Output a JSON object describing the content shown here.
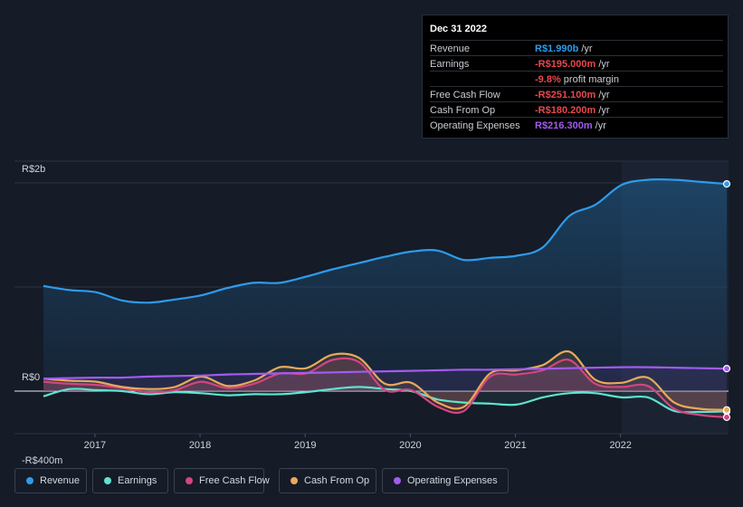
{
  "tooltip": {
    "date": "Dec 31 2022",
    "rows": [
      {
        "label": "Revenue",
        "value": "R$1.990b",
        "unit": " /yr",
        "color": "#2f9bea"
      },
      {
        "label": "Earnings",
        "value": "-R$195.000m",
        "unit": " /yr",
        "color": "#e8474f"
      },
      {
        "label": "",
        "value": "-9.8%",
        "unit": " profit margin",
        "color": "#e8474f"
      },
      {
        "label": "Free Cash Flow",
        "value": "-R$251.100m",
        "unit": " /yr",
        "color": "#e8474f"
      },
      {
        "label": "Cash From Op",
        "value": "-R$180.200m",
        "unit": " /yr",
        "color": "#e8474f"
      },
      {
        "label": "Operating Expenses",
        "value": "R$216.300m",
        "unit": " /yr",
        "color": "#a25bf0"
      }
    ]
  },
  "legend": [
    {
      "label": "Revenue",
      "color": "#2f9bea"
    },
    {
      "label": "Earnings",
      "color": "#5fe3cf"
    },
    {
      "label": "Free Cash Flow",
      "color": "#d3467e"
    },
    {
      "label": "Cash From Op",
      "color": "#e9a95a"
    },
    {
      "label": "Operating Expenses",
      "color": "#a25bf0"
    }
  ],
  "chart_data": {
    "type": "line",
    "title": "",
    "xlabel": "",
    "ylabel": "",
    "y_tick_labels": [
      "R$2b",
      "R$0",
      "-R$400m"
    ],
    "x_tick_labels": [
      "2017",
      "2018",
      "2019",
      "2020",
      "2021",
      "2022"
    ],
    "ylim": [
      -400,
      2200
    ],
    "xlim": [
      2016.5,
      2023.0
    ],
    "highlight_from": 2022.0,
    "units": "R$ millions",
    "x": [
      2016.5,
      2016.75,
      2017.0,
      2017.25,
      2017.5,
      2017.75,
      2018.0,
      2018.25,
      2018.5,
      2018.75,
      2019.0,
      2019.25,
      2019.5,
      2019.75,
      2020.0,
      2020.25,
      2020.5,
      2020.75,
      2021.0,
      2021.25,
      2021.5,
      2021.75,
      2022.0,
      2022.25,
      2022.5,
      2022.75,
      2023.0
    ],
    "series": [
      {
        "name": "Revenue",
        "color": "#2f9bea",
        "values": [
          1010,
          970,
          950,
          870,
          850,
          880,
          920,
          990,
          1040,
          1040,
          1100,
          1170,
          1230,
          1290,
          1340,
          1350,
          1260,
          1280,
          1300,
          1380,
          1680,
          1790,
          1980,
          2030,
          2030,
          2010,
          1990
        ]
      },
      {
        "name": "Earnings",
        "color": "#5fe3cf",
        "values": [
          -50,
          20,
          10,
          0,
          -30,
          -10,
          -20,
          -40,
          -30,
          -30,
          -10,
          20,
          40,
          20,
          0,
          -80,
          -110,
          -120,
          -130,
          -60,
          -20,
          -20,
          -60,
          -60,
          -190,
          -200,
          -195
        ]
      },
      {
        "name": "Free Cash Flow",
        "color": "#d3467e",
        "values": [
          90,
          70,
          60,
          30,
          -10,
          10,
          90,
          30,
          70,
          170,
          170,
          300,
          280,
          10,
          10,
          -150,
          -190,
          140,
          160,
          200,
          300,
          70,
          40,
          50,
          -170,
          -230,
          -251
        ]
      },
      {
        "name": "Cash From Op",
        "color": "#e9a95a",
        "values": [
          120,
          100,
          90,
          40,
          20,
          40,
          140,
          50,
          100,
          230,
          220,
          350,
          320,
          70,
          80,
          -110,
          -150,
          170,
          200,
          250,
          380,
          110,
          80,
          130,
          -110,
          -170,
          -180
        ]
      },
      {
        "name": "Operating Expenses",
        "color": "#a25bf0",
        "values": [
          120,
          125,
          130,
          130,
          140,
          145,
          150,
          160,
          165,
          170,
          175,
          180,
          185,
          190,
          195,
          200,
          205,
          205,
          210,
          215,
          220,
          225,
          230,
          230,
          225,
          220,
          216
        ]
      }
    ]
  }
}
